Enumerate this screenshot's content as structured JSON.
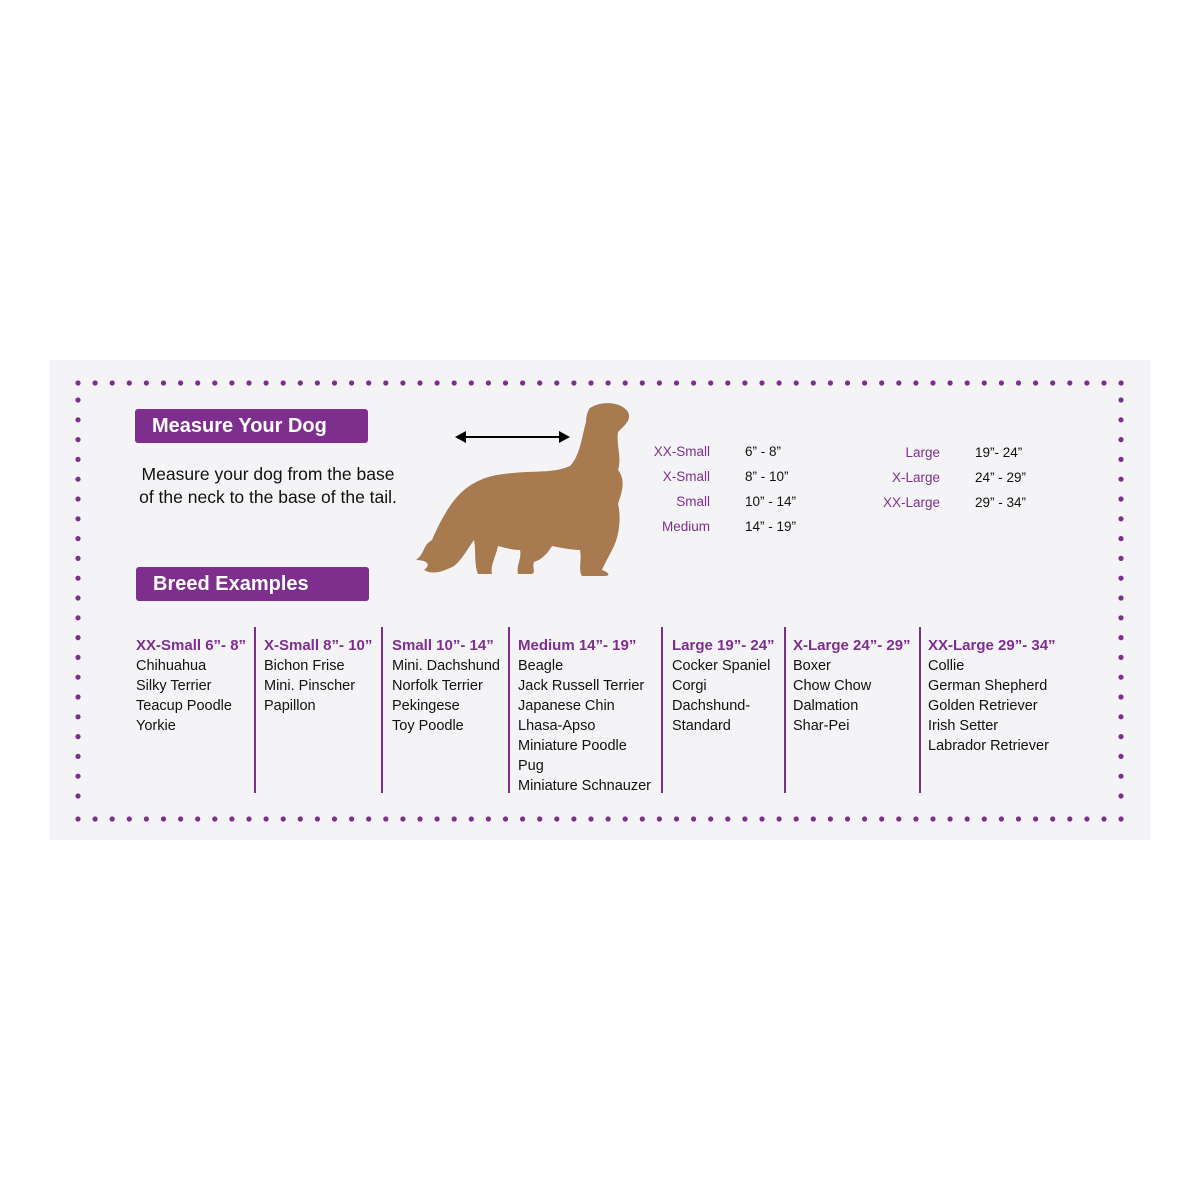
{
  "measure": {
    "title": "Measure Your Dog",
    "description_line1": "Measure your dog from the base",
    "description_line2": "of the neck to the base of the tail."
  },
  "breed_title": "Breed Examples",
  "sizes_left": [
    {
      "name": "XX-Small",
      "range": "6” - 8”"
    },
    {
      "name": "X-Small",
      "range": "8” - 10”"
    },
    {
      "name": "Small",
      "range": "10” - 14”"
    },
    {
      "name": "Medium",
      "range": "14” - 19”"
    }
  ],
  "sizes_right": [
    {
      "name": "Large",
      "range": "19”- 24”"
    },
    {
      "name": "X-Large",
      "range": "24” - 29”"
    },
    {
      "name": "XX-Large",
      "range": "29” - 34”"
    }
  ],
  "columns": [
    {
      "header": "XX-Small 6”- 8”",
      "breeds": [
        "Chihuahua",
        "Silky Terrier",
        "Teacup Poodle",
        "Yorkie"
      ]
    },
    {
      "header": "X-Small 8”- 10”",
      "breeds": [
        "Bichon Frise",
        "Mini. Pinscher",
        "Papillon"
      ]
    },
    {
      "header": "Small 10”- 14”",
      "breeds": [
        "Mini. Dachshund",
        "Norfolk Terrier",
        "Pekingese",
        "Toy Poodle"
      ]
    },
    {
      "header": "Medium 14”- 19”",
      "breeds": [
        "Beagle",
        "Jack Russell Terrier",
        "Japanese Chin",
        "Lhasa-Apso",
        "Miniature Poodle",
        "Pug",
        "Miniature Schnauzer"
      ]
    },
    {
      "header": "Large 19”- 24”",
      "breeds": [
        "Cocker Spaniel",
        "Corgi",
        "Dachshund-",
        "Standard"
      ]
    },
    {
      "header": "X-Large 24”- 29”",
      "breeds": [
        "Boxer",
        "Chow Chow",
        "Dalmation",
        "Shar-Pei"
      ]
    },
    {
      "header": "XX-Large 29”- 34”",
      "breeds": [
        "Collie",
        "German Shepherd",
        "Golden Retriever",
        "Irish Setter",
        "Labrador Retriever"
      ]
    }
  ],
  "colors": {
    "accent": "#7e2f8e",
    "dog": "#a87a50",
    "panel": "#f4f4f6"
  },
  "icons": [
    "double-arrow-icon",
    "dog-silhouette-icon"
  ]
}
